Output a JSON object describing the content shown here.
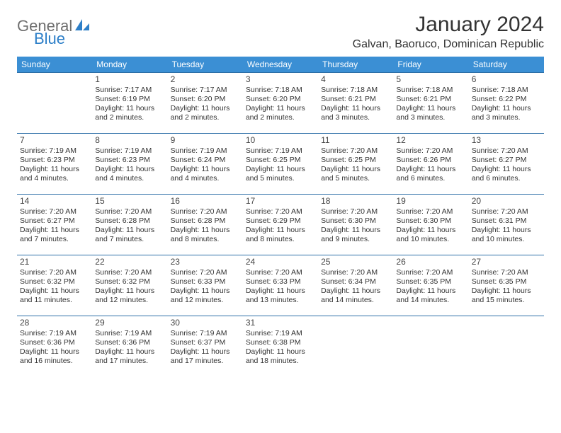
{
  "logo": {
    "part1": "General",
    "part2": "Blue"
  },
  "title": "January 2024",
  "location": "Galvan, Baoruco, Dominican Republic",
  "colors": {
    "header_bg": "#3b8fd4",
    "header_text": "#ffffff",
    "row_border": "#2d6fa8",
    "logo_gray": "#6f6f6f",
    "logo_blue": "#2d7fc8",
    "text": "#333333",
    "background": "#ffffff"
  },
  "day_headers": [
    "Sunday",
    "Monday",
    "Tuesday",
    "Wednesday",
    "Thursday",
    "Friday",
    "Saturday"
  ],
  "weeks": [
    [
      {
        "num": "",
        "sunrise": "",
        "sunset": "",
        "daylight": ""
      },
      {
        "num": "1",
        "sunrise": "Sunrise: 7:17 AM",
        "sunset": "Sunset: 6:19 PM",
        "daylight": "Daylight: 11 hours and 2 minutes."
      },
      {
        "num": "2",
        "sunrise": "Sunrise: 7:17 AM",
        "sunset": "Sunset: 6:20 PM",
        "daylight": "Daylight: 11 hours and 2 minutes."
      },
      {
        "num": "3",
        "sunrise": "Sunrise: 7:18 AM",
        "sunset": "Sunset: 6:20 PM",
        "daylight": "Daylight: 11 hours and 2 minutes."
      },
      {
        "num": "4",
        "sunrise": "Sunrise: 7:18 AM",
        "sunset": "Sunset: 6:21 PM",
        "daylight": "Daylight: 11 hours and 3 minutes."
      },
      {
        "num": "5",
        "sunrise": "Sunrise: 7:18 AM",
        "sunset": "Sunset: 6:21 PM",
        "daylight": "Daylight: 11 hours and 3 minutes."
      },
      {
        "num": "6",
        "sunrise": "Sunrise: 7:18 AM",
        "sunset": "Sunset: 6:22 PM",
        "daylight": "Daylight: 11 hours and 3 minutes."
      }
    ],
    [
      {
        "num": "7",
        "sunrise": "Sunrise: 7:19 AM",
        "sunset": "Sunset: 6:23 PM",
        "daylight": "Daylight: 11 hours and 4 minutes."
      },
      {
        "num": "8",
        "sunrise": "Sunrise: 7:19 AM",
        "sunset": "Sunset: 6:23 PM",
        "daylight": "Daylight: 11 hours and 4 minutes."
      },
      {
        "num": "9",
        "sunrise": "Sunrise: 7:19 AM",
        "sunset": "Sunset: 6:24 PM",
        "daylight": "Daylight: 11 hours and 4 minutes."
      },
      {
        "num": "10",
        "sunrise": "Sunrise: 7:19 AM",
        "sunset": "Sunset: 6:25 PM",
        "daylight": "Daylight: 11 hours and 5 minutes."
      },
      {
        "num": "11",
        "sunrise": "Sunrise: 7:20 AM",
        "sunset": "Sunset: 6:25 PM",
        "daylight": "Daylight: 11 hours and 5 minutes."
      },
      {
        "num": "12",
        "sunrise": "Sunrise: 7:20 AM",
        "sunset": "Sunset: 6:26 PM",
        "daylight": "Daylight: 11 hours and 6 minutes."
      },
      {
        "num": "13",
        "sunrise": "Sunrise: 7:20 AM",
        "sunset": "Sunset: 6:27 PM",
        "daylight": "Daylight: 11 hours and 6 minutes."
      }
    ],
    [
      {
        "num": "14",
        "sunrise": "Sunrise: 7:20 AM",
        "sunset": "Sunset: 6:27 PM",
        "daylight": "Daylight: 11 hours and 7 minutes."
      },
      {
        "num": "15",
        "sunrise": "Sunrise: 7:20 AM",
        "sunset": "Sunset: 6:28 PM",
        "daylight": "Daylight: 11 hours and 7 minutes."
      },
      {
        "num": "16",
        "sunrise": "Sunrise: 7:20 AM",
        "sunset": "Sunset: 6:28 PM",
        "daylight": "Daylight: 11 hours and 8 minutes."
      },
      {
        "num": "17",
        "sunrise": "Sunrise: 7:20 AM",
        "sunset": "Sunset: 6:29 PM",
        "daylight": "Daylight: 11 hours and 8 minutes."
      },
      {
        "num": "18",
        "sunrise": "Sunrise: 7:20 AM",
        "sunset": "Sunset: 6:30 PM",
        "daylight": "Daylight: 11 hours and 9 minutes."
      },
      {
        "num": "19",
        "sunrise": "Sunrise: 7:20 AM",
        "sunset": "Sunset: 6:30 PM",
        "daylight": "Daylight: 11 hours and 10 minutes."
      },
      {
        "num": "20",
        "sunrise": "Sunrise: 7:20 AM",
        "sunset": "Sunset: 6:31 PM",
        "daylight": "Daylight: 11 hours and 10 minutes."
      }
    ],
    [
      {
        "num": "21",
        "sunrise": "Sunrise: 7:20 AM",
        "sunset": "Sunset: 6:32 PM",
        "daylight": "Daylight: 11 hours and 11 minutes."
      },
      {
        "num": "22",
        "sunrise": "Sunrise: 7:20 AM",
        "sunset": "Sunset: 6:32 PM",
        "daylight": "Daylight: 11 hours and 12 minutes."
      },
      {
        "num": "23",
        "sunrise": "Sunrise: 7:20 AM",
        "sunset": "Sunset: 6:33 PM",
        "daylight": "Daylight: 11 hours and 12 minutes."
      },
      {
        "num": "24",
        "sunrise": "Sunrise: 7:20 AM",
        "sunset": "Sunset: 6:33 PM",
        "daylight": "Daylight: 11 hours and 13 minutes."
      },
      {
        "num": "25",
        "sunrise": "Sunrise: 7:20 AM",
        "sunset": "Sunset: 6:34 PM",
        "daylight": "Daylight: 11 hours and 14 minutes."
      },
      {
        "num": "26",
        "sunrise": "Sunrise: 7:20 AM",
        "sunset": "Sunset: 6:35 PM",
        "daylight": "Daylight: 11 hours and 14 minutes."
      },
      {
        "num": "27",
        "sunrise": "Sunrise: 7:20 AM",
        "sunset": "Sunset: 6:35 PM",
        "daylight": "Daylight: 11 hours and 15 minutes."
      }
    ],
    [
      {
        "num": "28",
        "sunrise": "Sunrise: 7:19 AM",
        "sunset": "Sunset: 6:36 PM",
        "daylight": "Daylight: 11 hours and 16 minutes."
      },
      {
        "num": "29",
        "sunrise": "Sunrise: 7:19 AM",
        "sunset": "Sunset: 6:36 PM",
        "daylight": "Daylight: 11 hours and 17 minutes."
      },
      {
        "num": "30",
        "sunrise": "Sunrise: 7:19 AM",
        "sunset": "Sunset: 6:37 PM",
        "daylight": "Daylight: 11 hours and 17 minutes."
      },
      {
        "num": "31",
        "sunrise": "Sunrise: 7:19 AM",
        "sunset": "Sunset: 6:38 PM",
        "daylight": "Daylight: 11 hours and 18 minutes."
      },
      {
        "num": "",
        "sunrise": "",
        "sunset": "",
        "daylight": ""
      },
      {
        "num": "",
        "sunrise": "",
        "sunset": "",
        "daylight": ""
      },
      {
        "num": "",
        "sunrise": "",
        "sunset": "",
        "daylight": ""
      }
    ]
  ]
}
